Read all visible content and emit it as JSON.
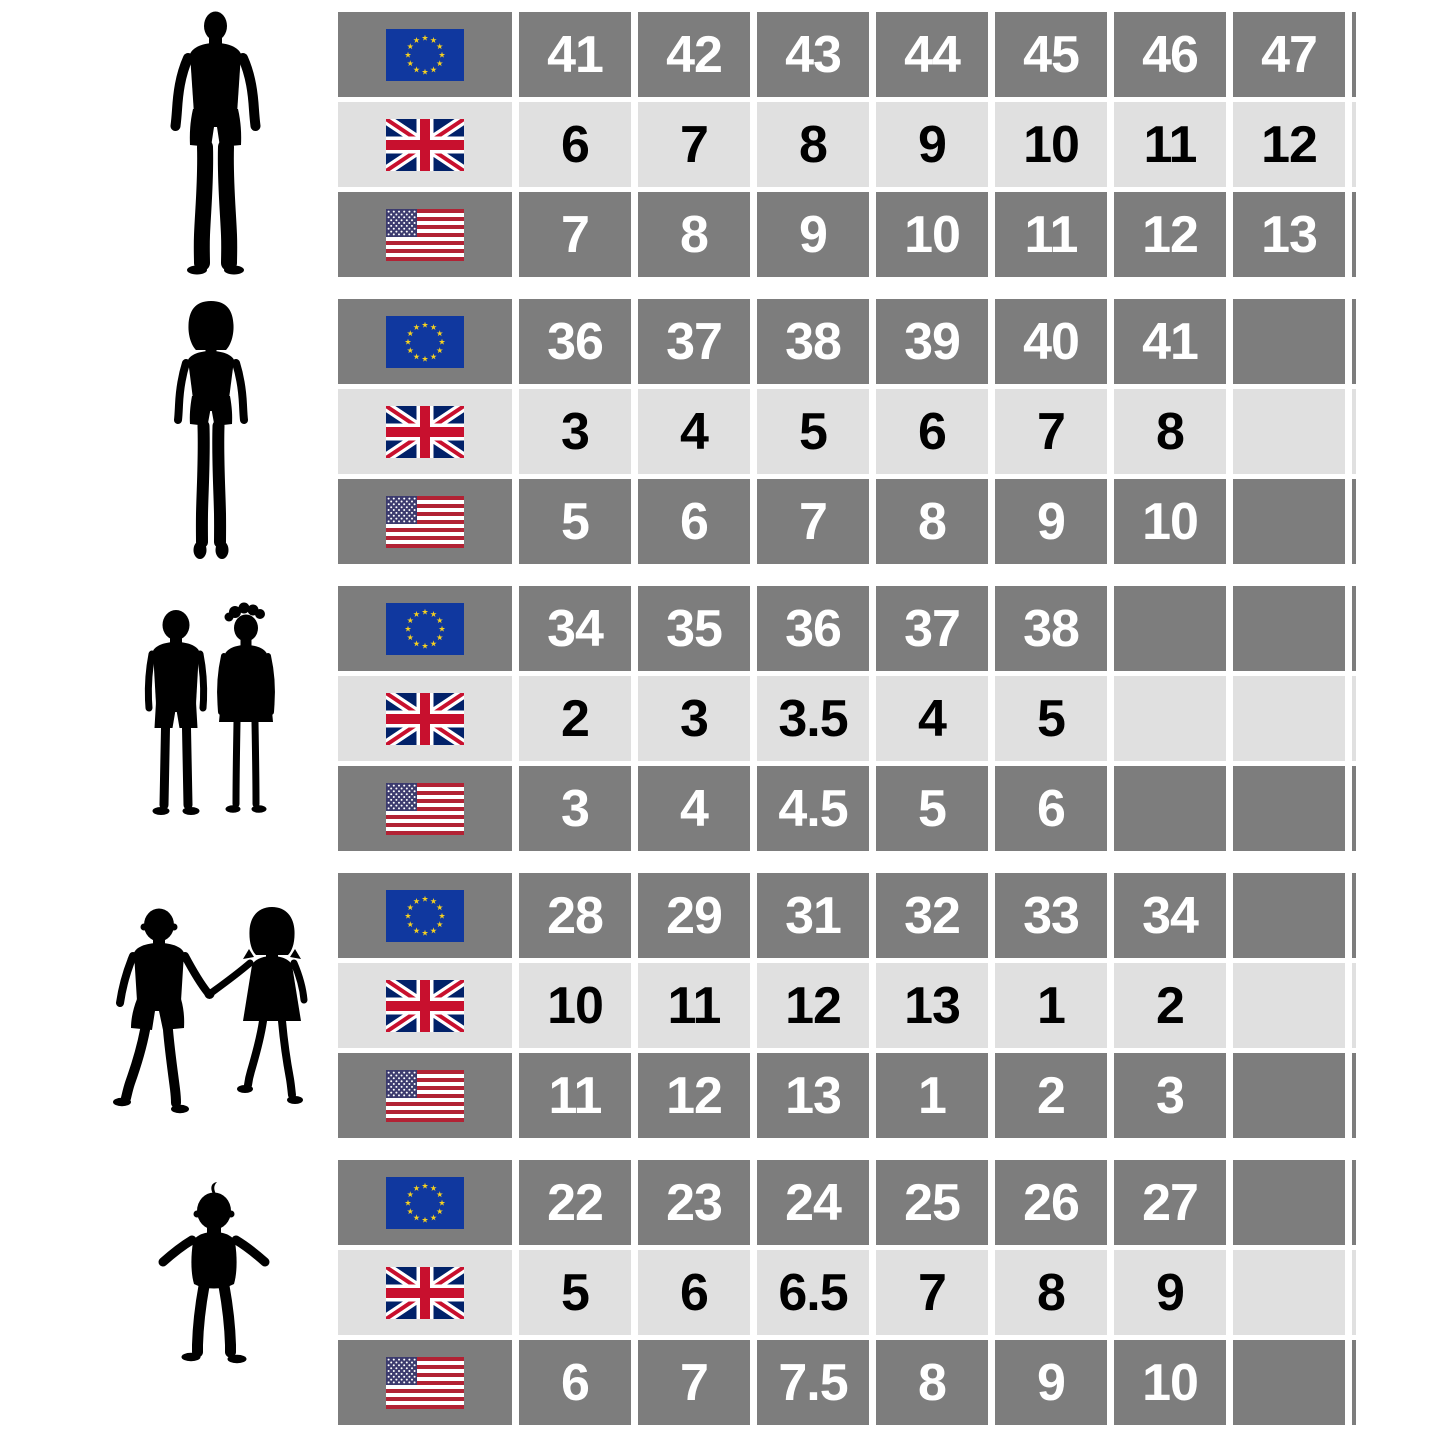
{
  "colors": {
    "row_dark": "#7d7d7d",
    "row_light": "#e0e0e0",
    "number_on_dark": "#ffffff",
    "number_on_light": "#000000",
    "silhouette": "#000000",
    "eu_blue": "#10389f",
    "eu_star": "#f5d020",
    "uk_blue": "#012169",
    "uk_red": "#c8102e",
    "us_red": "#b22234",
    "us_blue": "#3c3b6e"
  },
  "groups": [
    {
      "figure": "man-silhouette",
      "rows": [
        {
          "flag": "eu-flag",
          "values": [
            "41",
            "42",
            "43",
            "44",
            "45",
            "46",
            "47"
          ]
        },
        {
          "flag": "uk-flag",
          "values": [
            "6",
            "7",
            "8",
            "9",
            "10",
            "11",
            "12"
          ]
        },
        {
          "flag": "us-flag",
          "values": [
            "7",
            "8",
            "9",
            "10",
            "11",
            "12",
            "13"
          ]
        }
      ]
    },
    {
      "figure": "woman-silhouette",
      "rows": [
        {
          "flag": "eu-flag",
          "values": [
            "36",
            "37",
            "38",
            "39",
            "40",
            "41",
            ""
          ]
        },
        {
          "flag": "uk-flag",
          "values": [
            "3",
            "4",
            "5",
            "6",
            "7",
            "8",
            ""
          ]
        },
        {
          "flag": "us-flag",
          "values": [
            "5",
            "6",
            "7",
            "8",
            "9",
            "10",
            ""
          ]
        }
      ]
    },
    {
      "figure": "children-silhouette",
      "rows": [
        {
          "flag": "eu-flag",
          "values": [
            "34",
            "35",
            "36",
            "37",
            "38",
            "",
            ""
          ]
        },
        {
          "flag": "uk-flag",
          "values": [
            "2",
            "3",
            "3.5",
            "4",
            "5",
            "",
            ""
          ]
        },
        {
          "flag": "us-flag",
          "values": [
            "3",
            "4",
            "4.5",
            "5",
            "6",
            "",
            ""
          ]
        }
      ]
    },
    {
      "figure": "young-children-silhouette",
      "rows": [
        {
          "flag": "eu-flag",
          "values": [
            "28",
            "29",
            "31",
            "32",
            "33",
            "34",
            ""
          ]
        },
        {
          "flag": "uk-flag",
          "values": [
            "10",
            "11",
            "12",
            "13",
            "1",
            "2",
            ""
          ]
        },
        {
          "flag": "us-flag",
          "values": [
            "11",
            "12",
            "13",
            "1",
            "2",
            "3",
            ""
          ]
        }
      ]
    },
    {
      "figure": "toddler-silhouette",
      "rows": [
        {
          "flag": "eu-flag",
          "values": [
            "22",
            "23",
            "24",
            "25",
            "26",
            "27",
            ""
          ]
        },
        {
          "flag": "uk-flag",
          "values": [
            "5",
            "6",
            "6.5",
            "7",
            "8",
            "9",
            ""
          ]
        },
        {
          "flag": "us-flag",
          "values": [
            "6",
            "7",
            "7.5",
            "8",
            "9",
            "10",
            ""
          ]
        }
      ]
    }
  ]
}
